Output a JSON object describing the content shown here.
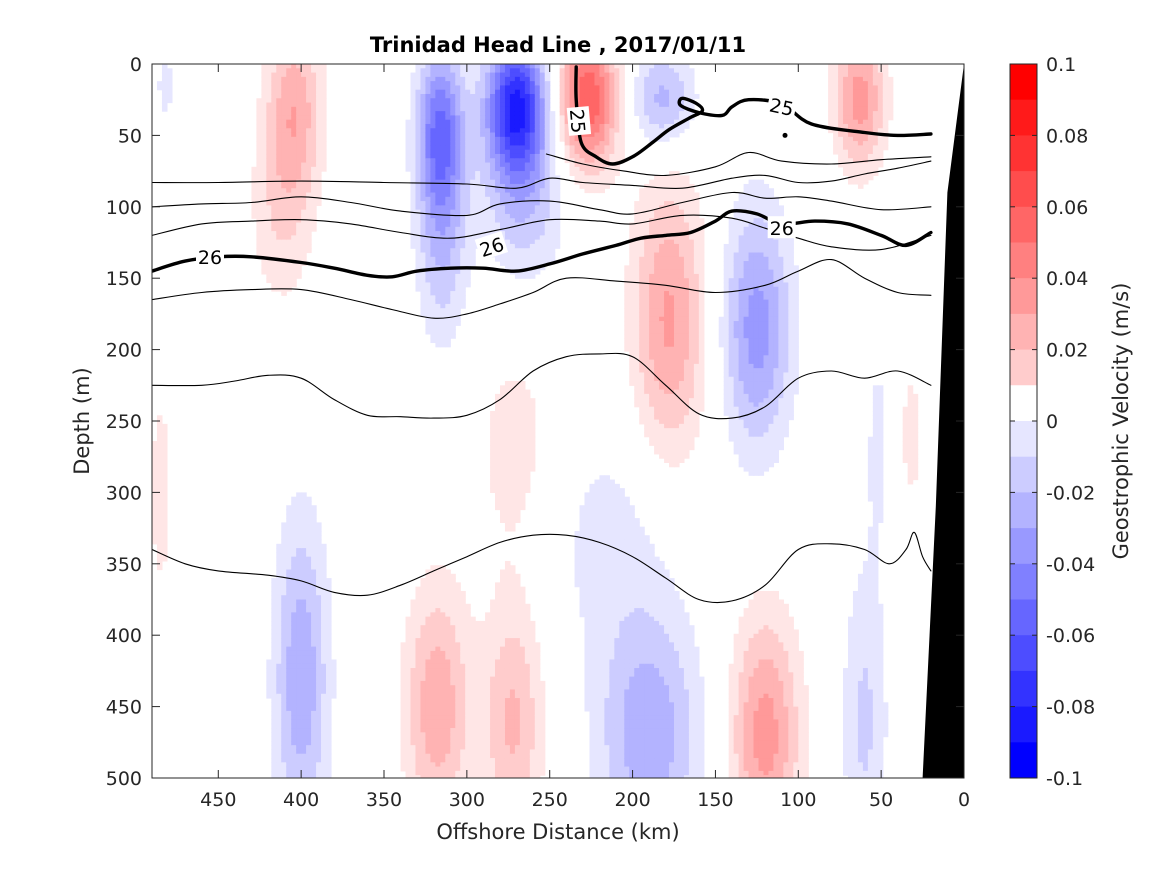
{
  "chart_data": {
    "type": "heatmap",
    "title": "Trinidad Head Line , 2017/01/11",
    "xlabel": "Offshore Distance (km)",
    "ylabel": "Depth (m)",
    "colorbar_label": "Geostrophic Velocity (m/s)",
    "xlim": [
      490,
      0
    ],
    "ylim": [
      0,
      500
    ],
    "x_reversed": true,
    "y_reversed": true,
    "x_ticks": [
      450,
      400,
      350,
      300,
      250,
      200,
      150,
      100,
      50,
      0
    ],
    "y_ticks": [
      0,
      50,
      100,
      150,
      200,
      250,
      300,
      350,
      400,
      450,
      500
    ],
    "colorbar_ticks": [
      0.1,
      0.08,
      0.06,
      0.04,
      0.02,
      0,
      -0.02,
      -0.04,
      -0.06,
      -0.08,
      -0.1
    ],
    "colorbar_tick_labels": [
      "0.1",
      "0.08",
      "0.06",
      "0.04",
      "0.02",
      "0",
      "-0.02",
      "-0.04",
      "-0.06",
      "-0.08",
      "-0.1"
    ],
    "clim": [
      -0.1,
      0.1
    ],
    "color_positive": "#ff0000",
    "color_negative": "#0000ff",
    "color_zero": "#ffffff",
    "bathymetry_color": "#000000",
    "velocity_cores": [
      {
        "x": 482,
        "depth": 15,
        "value": -0.012,
        "sx": 6,
        "sz": 30
      },
      {
        "x": 404,
        "depth": 30,
        "value": 0.035,
        "sx": 12,
        "sz": 45
      },
      {
        "x": 412,
        "depth": 105,
        "value": 0.018,
        "sx": 14,
        "sz": 50
      },
      {
        "x": 316,
        "depth": 45,
        "value": -0.055,
        "sx": 10,
        "sz": 40
      },
      {
        "x": 315,
        "depth": 120,
        "value": -0.03,
        "sx": 11,
        "sz": 55
      },
      {
        "x": 270,
        "depth": 30,
        "value": -0.092,
        "sx": 13,
        "sz": 35
      },
      {
        "x": 265,
        "depth": 100,
        "value": -0.025,
        "sx": 18,
        "sz": 40
      },
      {
        "x": 227,
        "depth": 25,
        "value": 0.07,
        "sx": 13,
        "sz": 35
      },
      {
        "x": 182,
        "depth": 25,
        "value": -0.035,
        "sx": 14,
        "sz": 25
      },
      {
        "x": 178,
        "depth": 180,
        "value": 0.042,
        "sx": 16,
        "sz": 70
      },
      {
        "x": 125,
        "depth": 185,
        "value": -0.045,
        "sx": 15,
        "sz": 60
      },
      {
        "x": 63,
        "depth": 25,
        "value": 0.045,
        "sx": 11,
        "sz": 35
      },
      {
        "x": 32,
        "depth": 260,
        "value": 0.015,
        "sx": 5,
        "sz": 40
      },
      {
        "x": 52,
        "depth": 260,
        "value": -0.012,
        "sx": 6,
        "sz": 60
      },
      {
        "x": 485,
        "depth": 300,
        "value": 0.012,
        "sx": 8,
        "sz": 90
      },
      {
        "x": 270,
        "depth": 270,
        "value": 0.015,
        "sx": 20,
        "sz": 60
      },
      {
        "x": 400,
        "depth": 430,
        "value": -0.038,
        "sx": 12,
        "sz": 80
      },
      {
        "x": 318,
        "depth": 450,
        "value": 0.038,
        "sx": 14,
        "sz": 60
      },
      {
        "x": 272,
        "depth": 460,
        "value": 0.032,
        "sx": 13,
        "sz": 60
      },
      {
        "x": 190,
        "depth": 470,
        "value": -0.038,
        "sx": 22,
        "sz": 60
      },
      {
        "x": 120,
        "depth": 470,
        "value": 0.045,
        "sx": 15,
        "sz": 60
      },
      {
        "x": 60,
        "depth": 460,
        "value": -0.022,
        "sx": 10,
        "sz": 80
      },
      {
        "x": 215,
        "depth": 330,
        "value": -0.014,
        "sx": 30,
        "sz": 60
      }
    ],
    "isopycnals": [
      {
        "level": "25",
        "labeled": true,
        "points": [
          [
            234,
            2
          ],
          [
            234,
            25
          ],
          [
            231,
            55
          ],
          [
            222,
            65
          ],
          [
            212,
            70
          ],
          [
            200,
            65
          ],
          [
            188,
            55
          ],
          [
            178,
            46
          ],
          [
            166,
            38
          ],
          [
            158,
            33
          ],
          [
            161,
            28
          ],
          [
            170,
            24
          ],
          [
            171,
            29
          ],
          [
            160,
            34
          ],
          [
            146,
            36
          ],
          [
            140,
            30
          ],
          [
            130,
            25
          ],
          [
            110,
            28
          ],
          [
            92,
            42
          ],
          [
            60,
            48
          ],
          [
            40,
            50
          ],
          [
            20,
            49
          ]
        ]
      },
      {
        "level": "25",
        "labeled": false,
        "points": [
          [
            252,
            63
          ],
          [
            230,
            70
          ],
          [
            205,
            75
          ],
          [
            180,
            78
          ],
          [
            150,
            72
          ],
          [
            130,
            62
          ],
          [
            110,
            68
          ],
          [
            80,
            70
          ],
          [
            50,
            67
          ],
          [
            20,
            65
          ]
        ]
      },
      {
        "level": "",
        "labeled": false,
        "points": [
          [
            490,
            83
          ],
          [
            450,
            83
          ],
          [
            400,
            82
          ],
          [
            350,
            83
          ],
          [
            300,
            84
          ],
          [
            270,
            87
          ],
          [
            250,
            80
          ],
          [
            230,
            83
          ],
          [
            200,
            85
          ],
          [
            170,
            87
          ],
          [
            140,
            80
          ],
          [
            120,
            78
          ],
          [
            100,
            83
          ],
          [
            80,
            82
          ],
          [
            60,
            77
          ],
          [
            40,
            73
          ],
          [
            20,
            68
          ]
        ]
      },
      {
        "level": "",
        "labeled": false,
        "points": [
          [
            490,
            100
          ],
          [
            460,
            98
          ],
          [
            430,
            97
          ],
          [
            400,
            93
          ],
          [
            370,
            97
          ],
          [
            340,
            103
          ],
          [
            300,
            106
          ],
          [
            280,
            98
          ],
          [
            250,
            96
          ],
          [
            220,
            102
          ],
          [
            200,
            105
          ],
          [
            170,
            97
          ],
          [
            140,
            90
          ],
          [
            120,
            94
          ],
          [
            100,
            93
          ],
          [
            80,
            96
          ],
          [
            50,
            102
          ],
          [
            20,
            100
          ]
        ]
      },
      {
        "level": "",
        "labeled": false,
        "points": [
          [
            490,
            120
          ],
          [
            460,
            112
          ],
          [
            430,
            110
          ],
          [
            400,
            109
          ],
          [
            370,
            112
          ],
          [
            340,
            118
          ],
          [
            310,
            122
          ],
          [
            280,
            116
          ],
          [
            250,
            109
          ],
          [
            220,
            110
          ],
          [
            200,
            112
          ],
          [
            170,
            106
          ],
          [
            140,
            108
          ],
          [
            120,
            115
          ],
          [
            100,
            122
          ],
          [
            80,
            128
          ],
          [
            50,
            130
          ],
          [
            20,
            120
          ]
        ]
      },
      {
        "level": "26",
        "labeled": true,
        "points": [
          [
            490,
            145
          ],
          [
            470,
            138
          ],
          [
            450,
            135
          ],
          [
            430,
            135
          ],
          [
            400,
            139
          ],
          [
            380,
            143
          ],
          [
            360,
            148
          ],
          [
            345,
            149
          ],
          [
            330,
            145
          ],
          [
            310,
            143
          ],
          [
            290,
            143
          ],
          [
            270,
            145
          ],
          [
            250,
            140
          ],
          [
            230,
            133
          ],
          [
            210,
            127
          ],
          [
            195,
            122
          ],
          [
            180,
            120
          ],
          [
            165,
            118
          ],
          [
            150,
            110
          ],
          [
            140,
            103
          ],
          [
            125,
            105
          ],
          [
            110,
            112
          ],
          [
            90,
            110
          ],
          [
            70,
            112
          ],
          [
            50,
            120
          ],
          [
            35,
            127
          ],
          [
            20,
            118
          ]
        ]
      },
      {
        "level": "",
        "labeled": false,
        "points": [
          [
            490,
            165
          ],
          [
            460,
            160
          ],
          [
            430,
            158
          ],
          [
            400,
            158
          ],
          [
            370,
            165
          ],
          [
            345,
            172
          ],
          [
            320,
            178
          ],
          [
            300,
            175
          ],
          [
            280,
            168
          ],
          [
            260,
            160
          ],
          [
            240,
            150
          ],
          [
            210,
            152
          ],
          [
            180,
            155
          ],
          [
            150,
            160
          ],
          [
            120,
            155
          ],
          [
            100,
            145
          ],
          [
            80,
            137
          ],
          [
            60,
            150
          ],
          [
            40,
            160
          ],
          [
            20,
            162
          ]
        ]
      },
      {
        "level": "",
        "labeled": false,
        "points": [
          [
            490,
            225
          ],
          [
            460,
            225
          ],
          [
            440,
            222
          ],
          [
            420,
            218
          ],
          [
            400,
            220
          ],
          [
            380,
            235
          ],
          [
            360,
            246
          ],
          [
            340,
            247
          ],
          [
            320,
            248
          ],
          [
            300,
            246
          ],
          [
            280,
            235
          ],
          [
            260,
            215
          ],
          [
            240,
            205
          ],
          [
            220,
            203
          ],
          [
            200,
            205
          ],
          [
            180,
            225
          ],
          [
            160,
            245
          ],
          [
            140,
            248
          ],
          [
            120,
            240
          ],
          [
            100,
            220
          ],
          [
            80,
            215
          ],
          [
            60,
            220
          ],
          [
            40,
            215
          ],
          [
            20,
            225
          ]
        ]
      },
      {
        "level": "",
        "labeled": false,
        "points": [
          [
            490,
            340
          ],
          [
            470,
            350
          ],
          [
            450,
            355
          ],
          [
            420,
            358
          ],
          [
            400,
            362
          ],
          [
            380,
            370
          ],
          [
            360,
            372
          ],
          [
            340,
            365
          ],
          [
            320,
            355
          ],
          [
            300,
            345
          ],
          [
            280,
            335
          ],
          [
            260,
            330
          ],
          [
            240,
            330
          ],
          [
            220,
            335
          ],
          [
            200,
            345
          ],
          [
            180,
            360
          ],
          [
            160,
            375
          ],
          [
            140,
            376
          ],
          [
            120,
            365
          ],
          [
            100,
            340
          ],
          [
            80,
            336
          ],
          [
            60,
            340
          ],
          [
            45,
            350
          ],
          [
            35,
            340
          ],
          [
            30,
            328
          ],
          [
            25,
            345
          ],
          [
            20,
            355
          ]
        ]
      }
    ],
    "contour_labels": [
      {
        "text": "25",
        "x": 233,
        "depth": 40,
        "angle": 85
      },
      {
        "text": "25",
        "x": 110,
        "depth": 30,
        "angle": 12
      },
      {
        "text": "26",
        "x": 455,
        "depth": 135,
        "angle": 0
      },
      {
        "text": "26",
        "x": 285,
        "depth": 128,
        "angle": -18
      },
      {
        "text": "26",
        "x": 110,
        "depth": 115,
        "angle": 0
      }
    ],
    "extra_markers": [
      {
        "type": "dot",
        "x": 108,
        "depth": 50
      }
    ],
    "bathymetry": [
      [
        0,
        0
      ],
      [
        10,
        90
      ],
      [
        17,
        310
      ],
      [
        25,
        500
      ],
      [
        0,
        500
      ]
    ]
  }
}
